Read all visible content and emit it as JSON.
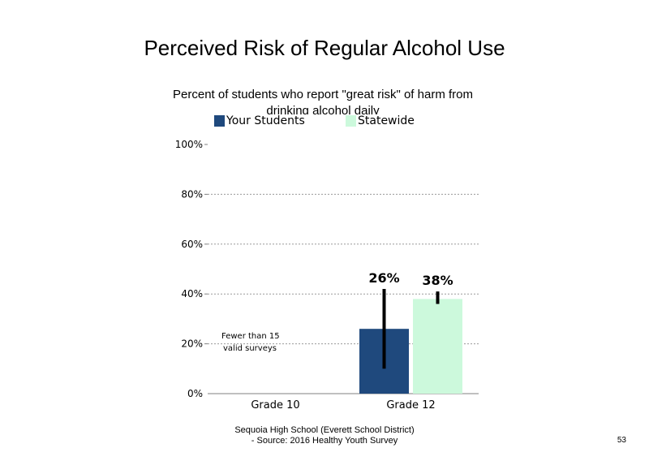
{
  "slide": {
    "title": "Perceived Risk of Regular Alcohol Use",
    "subtitle": "Percent of students who report \"great risk\" of harm from drinking alcohol daily",
    "footer_line1": "Sequoia High School (Everett School District)",
    "footer_line2": "- Source: 2016 Healthy Youth Survey",
    "page_number": "53"
  },
  "chart_data": {
    "type": "bar",
    "title": "Perceived Risk of Regular Alcohol Use",
    "subtitle": "Percent of students who report \"great risk\" of harm from drinking alcohol daily",
    "categories": [
      "Grade 10",
      "Grade 12"
    ],
    "series": [
      {
        "name": "Your Students",
        "color": "#1f497d",
        "values": [
          null,
          26
        ],
        "error_low": [
          null,
          10
        ],
        "error_high": [
          null,
          42
        ],
        "labels": [
          "",
          "26%"
        ]
      },
      {
        "name": "Statewide",
        "color": "#ccf9dc",
        "values": [
          null,
          38
        ],
        "error_low": [
          null,
          36
        ],
        "error_high": [
          null,
          41
        ],
        "labels": [
          "",
          "38%"
        ]
      }
    ],
    "yticks": [
      "0%",
      "20%",
      "40%",
      "60%",
      "80%",
      "100%"
    ],
    "ylim": [
      0,
      100
    ],
    "grid": true,
    "legend_position": "top",
    "annotation": "Fewer than 15 valid surveys"
  }
}
